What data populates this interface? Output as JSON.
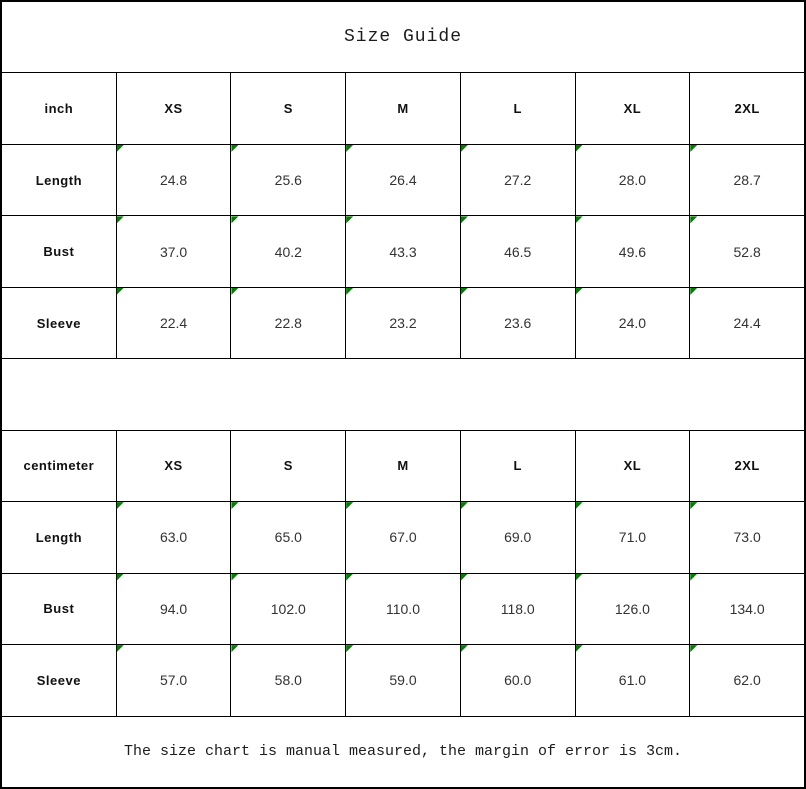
{
  "title": "Size Guide",
  "footer_note": "The size chart is manual measured, the margin of error is 3cm.",
  "colors": {
    "flag_green": "#008000",
    "border": "#000000",
    "background": "#ffffff",
    "text": "#1c1c1c"
  },
  "icons": {
    "cell_flag": "green-corner-triangle"
  },
  "tables": [
    {
      "unit_label": "inch",
      "sizes": [
        "XS",
        "S",
        "M",
        "L",
        "XL",
        "2XL"
      ],
      "rows": [
        {
          "label": "Length",
          "values": [
            "24.8",
            "25.6",
            "26.4",
            "27.2",
            "28.0",
            "28.7"
          ]
        },
        {
          "label": "Bust",
          "values": [
            "37.0",
            "40.2",
            "43.3",
            "46.5",
            "49.6",
            "52.8"
          ]
        },
        {
          "label": "Sleeve",
          "values": [
            "22.4",
            "22.8",
            "23.2",
            "23.6",
            "24.0",
            "24.4"
          ]
        }
      ]
    },
    {
      "unit_label": "centimeter",
      "sizes": [
        "XS",
        "S",
        "M",
        "L",
        "XL",
        "2XL"
      ],
      "rows": [
        {
          "label": "Length",
          "values": [
            "63.0",
            "65.0",
            "67.0",
            "69.0",
            "71.0",
            "73.0"
          ]
        },
        {
          "label": "Bust",
          "values": [
            "94.0",
            "102.0",
            "110.0",
            "118.0",
            "126.0",
            "134.0"
          ]
        },
        {
          "label": "Sleeve",
          "values": [
            "57.0",
            "58.0",
            "59.0",
            "60.0",
            "61.0",
            "62.0"
          ]
        }
      ]
    }
  ]
}
